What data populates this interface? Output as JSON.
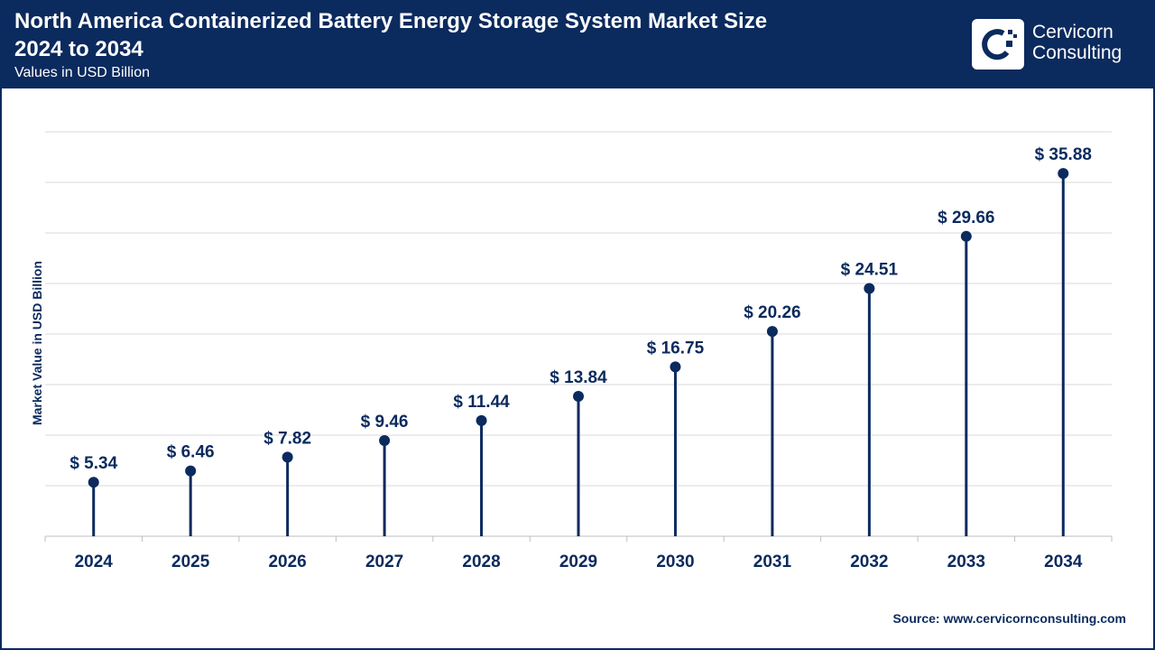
{
  "header": {
    "title_line1": "North America Containerized Battery Energy Storage System Market Size",
    "title_line2": "2024 to 2034",
    "subtitle": "Values in USD Billion",
    "logo_name_line1": "Cervicorn",
    "logo_name_line2": "Consulting",
    "logo_icon": "cervicorn-logo-icon"
  },
  "colors": {
    "brand": "#0b2a5e",
    "grid": "#d9d9d9",
    "axis": "#bfbfbf"
  },
  "chart_data": {
    "type": "lollipop",
    "title": "North America Containerized Battery Energy Storage System Market Size 2024 to 2034",
    "subtitle": "Values in USD Billion",
    "xlabel": "",
    "ylabel": "Market Value in USD Billion",
    "categories": [
      "2024",
      "2025",
      "2026",
      "2027",
      "2028",
      "2029",
      "2030",
      "2031",
      "2032",
      "2033",
      "2034"
    ],
    "values": [
      5.34,
      6.46,
      7.82,
      9.46,
      11.44,
      13.84,
      16.75,
      20.26,
      24.51,
      29.66,
      35.88
    ],
    "value_labels": [
      "$ 5.34",
      "$ 6.46",
      "$ 7.82",
      "$ 9.46",
      "$ 11.44",
      "$ 13.84",
      "$ 16.75",
      "$ 20.26",
      "$ 24.51",
      "$ 29.66",
      "$ 35.88"
    ],
    "ylim": [
      0,
      40
    ],
    "y_gridlines": 8,
    "grid": true,
    "legend": "none"
  },
  "source": "Source: www.cervicornconsulting.com"
}
